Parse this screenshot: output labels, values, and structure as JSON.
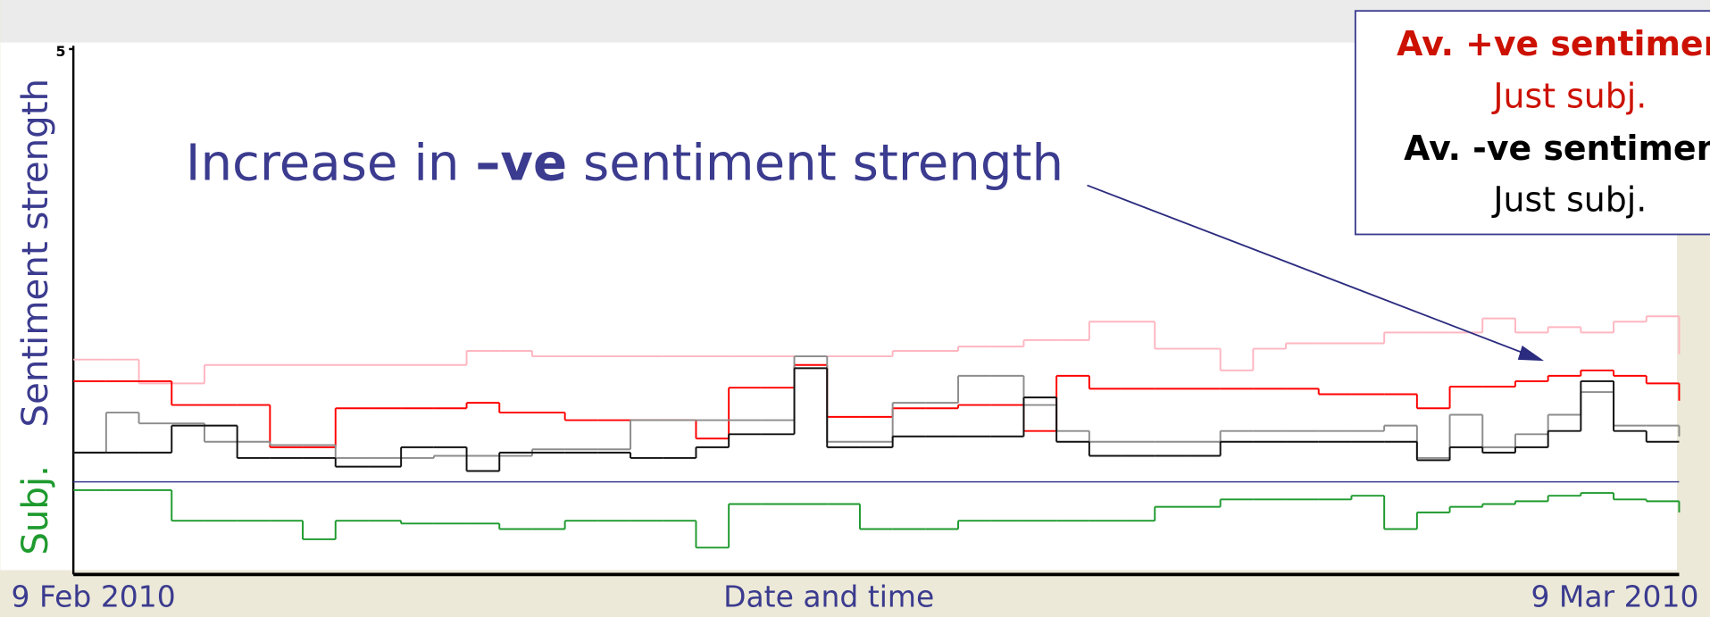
{
  "chart_data": [
    {
      "type": "line",
      "step": true,
      "y_label": "Sentiment strength",
      "ylim": [
        1,
        5
      ],
      "yticks": [
        5
      ],
      "x_count": 50,
      "annotation": {
        "parts": [
          "Increase in ",
          "–ve",
          " sentiment strength"
        ],
        "bold": [
          false,
          true,
          false
        ]
      },
      "series": [
        {
          "name": "Just subj.",
          "color": "#ffb6c1",
          "legend_color": "#cc1100",
          "legend_bold": false,
          "legend_order": 1,
          "values": [
            2.13,
            2.13,
            1.91,
            1.91,
            2.08,
            2.08,
            2.08,
            2.08,
            2.08,
            2.08,
            2.08,
            2.08,
            2.21,
            2.21,
            2.16,
            2.16,
            2.16,
            2.16,
            2.16,
            2.16,
            2.16,
            2.16,
            2.16,
            2.16,
            2.16,
            2.21,
            2.21,
            2.25,
            2.25,
            2.31,
            2.31,
            2.48,
            2.48,
            2.23,
            2.23,
            2.03,
            2.23,
            2.28,
            2.28,
            2.28,
            2.38,
            2.38,
            2.38,
            2.51,
            2.38,
            2.43,
            2.38,
            2.48,
            2.53,
            2.18
          ]
        },
        {
          "name": "Av. +ve sentiment",
          "color": "#ff0000",
          "legend_color": "#cc1100",
          "legend_bold": true,
          "legend_order": 0,
          "values": [
            1.93,
            1.93,
            1.93,
            1.71,
            1.71,
            1.71,
            1.32,
            1.32,
            1.68,
            1.68,
            1.68,
            1.68,
            1.73,
            1.64,
            1.64,
            1.57,
            1.57,
            1.57,
            1.57,
            1.4,
            1.87,
            1.87,
            2.08,
            1.6,
            1.6,
            1.68,
            1.68,
            1.71,
            1.71,
            1.47,
            1.98,
            1.86,
            1.86,
            1.86,
            1.86,
            1.86,
            1.86,
            1.86,
            1.81,
            1.81,
            1.81,
            1.68,
            1.88,
            1.88,
            1.93,
            1.98,
            2.03,
            1.98,
            1.91,
            1.75
          ]
        },
        {
          "name": "Just subj.",
          "color": "#8c8c8c",
          "legend_color": "#000000",
          "legend_bold": false,
          "legend_order": 3,
          "values": [
            1.27,
            1.64,
            1.54,
            1.54,
            1.37,
            1.37,
            1.34,
            1.34,
            1.22,
            1.22,
            1.22,
            1.24,
            1.24,
            1.24,
            1.3,
            1.3,
            1.3,
            1.57,
            1.57,
            1.57,
            1.57,
            1.57,
            2.16,
            1.37,
            1.37,
            1.73,
            1.73,
            1.98,
            1.98,
            1.71,
            1.47,
            1.37,
            1.37,
            1.37,
            1.37,
            1.47,
            1.47,
            1.47,
            1.47,
            1.47,
            1.52,
            1.22,
            1.62,
            1.32,
            1.44,
            1.62,
            1.83,
            1.52,
            1.52,
            1.42
          ]
        },
        {
          "name": "Av. -ve sentiment",
          "color": "#111111",
          "legend_color": "#000000",
          "legend_bold": true,
          "legend_order": 2,
          "values": [
            1.27,
            1.27,
            1.27,
            1.52,
            1.52,
            1.22,
            1.22,
            1.22,
            1.14,
            1.14,
            1.32,
            1.32,
            1.1,
            1.27,
            1.27,
            1.27,
            1.27,
            1.22,
            1.22,
            1.32,
            1.44,
            1.44,
            2.05,
            1.32,
            1.32,
            1.42,
            1.42,
            1.42,
            1.42,
            1.78,
            1.37,
            1.24,
            1.24,
            1.24,
            1.24,
            1.37,
            1.37,
            1.37,
            1.37,
            1.37,
            1.37,
            1.2,
            1.32,
            1.27,
            1.32,
            1.47,
            1.93,
            1.47,
            1.37,
            1.37
          ]
        }
      ]
    },
    {
      "type": "line",
      "step": true,
      "y_label": "Subj.",
      "ylim": [
        0,
        1
      ],
      "x_label": "Date and time",
      "x_labels": [
        "9 Feb 2010",
        "9 Mar 2010"
      ],
      "series": [
        {
          "color": "#1e9a2e",
          "values": [
            0.91,
            0.91,
            0.91,
            0.58,
            0.58,
            0.58,
            0.58,
            0.38,
            0.58,
            0.58,
            0.55,
            0.55,
            0.55,
            0.49,
            0.49,
            0.58,
            0.58,
            0.58,
            0.58,
            0.29,
            0.76,
            0.76,
            0.76,
            0.76,
            0.49,
            0.49,
            0.49,
            0.58,
            0.58,
            0.58,
            0.58,
            0.58,
            0.58,
            0.73,
            0.73,
            0.81,
            0.81,
            0.81,
            0.81,
            0.85,
            0.49,
            0.67,
            0.73,
            0.76,
            0.79,
            0.85,
            0.88,
            0.81,
            0.79,
            0.67
          ]
        }
      ]
    }
  ]
}
